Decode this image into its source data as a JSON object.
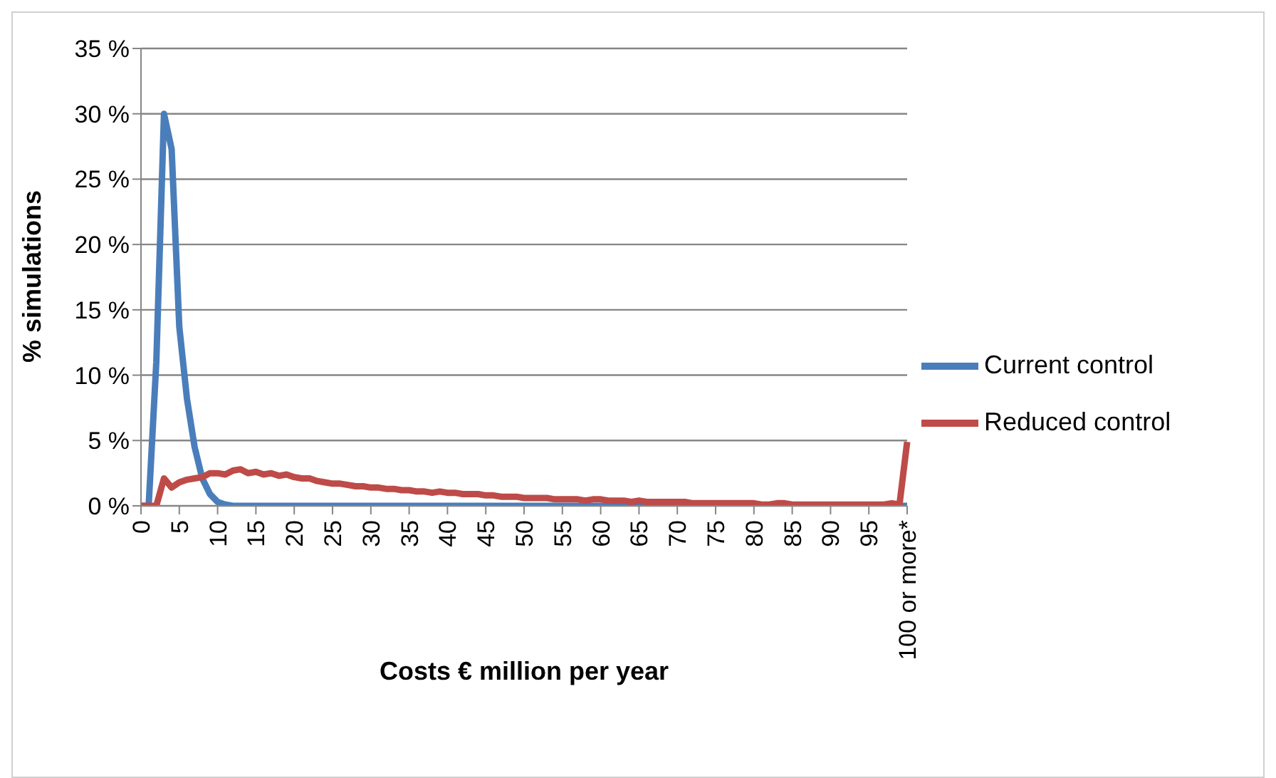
{
  "chart_data": {
    "type": "line",
    "xlabel": "Costs € million per year",
    "ylabel": "% simulations",
    "categories": [
      "0",
      null,
      null,
      null,
      null,
      "5",
      null,
      null,
      null,
      null,
      "10",
      null,
      null,
      null,
      null,
      "15",
      null,
      null,
      null,
      null,
      "20",
      null,
      null,
      null,
      null,
      "25",
      null,
      null,
      null,
      null,
      "30",
      null,
      null,
      null,
      null,
      "35",
      null,
      null,
      null,
      null,
      "40",
      null,
      null,
      null,
      null,
      "45",
      null,
      null,
      null,
      null,
      "50",
      null,
      null,
      null,
      null,
      "55",
      null,
      null,
      null,
      null,
      "60",
      null,
      null,
      null,
      null,
      "65",
      null,
      null,
      null,
      null,
      "70",
      null,
      null,
      null,
      null,
      "75",
      null,
      null,
      null,
      null,
      "80",
      null,
      null,
      null,
      null,
      "85",
      null,
      null,
      null,
      null,
      "90",
      null,
      null,
      null,
      null,
      "95",
      null,
      null,
      null,
      null,
      "100 or more*"
    ],
    "series": [
      {
        "name": "Current control",
        "color": "#4a7ebb",
        "values": [
          0,
          0,
          11,
          30,
          27.3,
          13.7,
          8.2,
          4.5,
          2.1,
          0.9,
          0.3,
          0.1,
          0,
          0,
          0,
          0,
          0,
          0,
          0,
          0,
          0,
          0,
          0,
          0,
          0,
          0,
          0,
          0,
          0,
          0,
          0,
          0,
          0,
          0,
          0,
          0,
          0,
          0,
          0,
          0,
          0,
          0,
          0,
          0,
          0,
          0,
          0,
          0,
          0,
          0,
          0,
          0,
          0,
          0,
          0,
          0,
          0,
          0,
          0,
          0,
          0,
          0,
          0,
          0,
          0,
          0,
          0,
          0,
          0,
          0,
          0,
          0,
          0,
          0,
          0,
          0,
          0,
          0,
          0,
          0,
          0,
          0,
          0,
          0,
          0,
          0,
          0,
          0,
          0,
          0,
          0,
          0,
          0,
          0,
          0,
          0,
          0,
          0,
          0,
          0,
          0
        ]
      },
      {
        "name": "Reduced control",
        "color": "#be4b48",
        "values": [
          0,
          0,
          0,
          2.1,
          1.4,
          1.8,
          2.0,
          2.1,
          2.2,
          2.5,
          2.5,
          2.4,
          2.7,
          2.8,
          2.5,
          2.6,
          2.4,
          2.5,
          2.3,
          2.4,
          2.2,
          2.1,
          2.1,
          1.9,
          1.8,
          1.7,
          1.7,
          1.6,
          1.5,
          1.5,
          1.4,
          1.4,
          1.3,
          1.3,
          1.2,
          1.2,
          1.1,
          1.1,
          1.0,
          1.1,
          1.0,
          1.0,
          0.9,
          0.9,
          0.9,
          0.8,
          0.8,
          0.7,
          0.7,
          0.7,
          0.6,
          0.6,
          0.6,
          0.6,
          0.5,
          0.5,
          0.5,
          0.5,
          0.4,
          0.5,
          0.5,
          0.4,
          0.4,
          0.4,
          0.3,
          0.4,
          0.3,
          0.3,
          0.3,
          0.3,
          0.3,
          0.3,
          0.2,
          0.2,
          0.2,
          0.2,
          0.2,
          0.2,
          0.2,
          0.2,
          0.2,
          0.1,
          0.1,
          0.2,
          0.2,
          0.1,
          0.1,
          0.1,
          0.1,
          0.1,
          0.1,
          0.1,
          0.1,
          0.1,
          0.1,
          0.1,
          0.1,
          0.1,
          0.2,
          0.1,
          4.9
        ]
      }
    ],
    "ylim": [
      0,
      35
    ],
    "yticks": [
      {
        "value": 0,
        "label": "0 %"
      },
      {
        "value": 5,
        "label": "5 %"
      },
      {
        "value": 10,
        "label": "10 %"
      },
      {
        "value": 15,
        "label": "15 %"
      },
      {
        "value": 20,
        "label": "20 %"
      },
      {
        "value": 25,
        "label": "25 %"
      },
      {
        "value": 30,
        "label": "30 %"
      },
      {
        "value": 35,
        "label": "35 %"
      }
    ],
    "grid": "y",
    "legend": "right",
    "marker": "none",
    "line_style": "solid"
  }
}
